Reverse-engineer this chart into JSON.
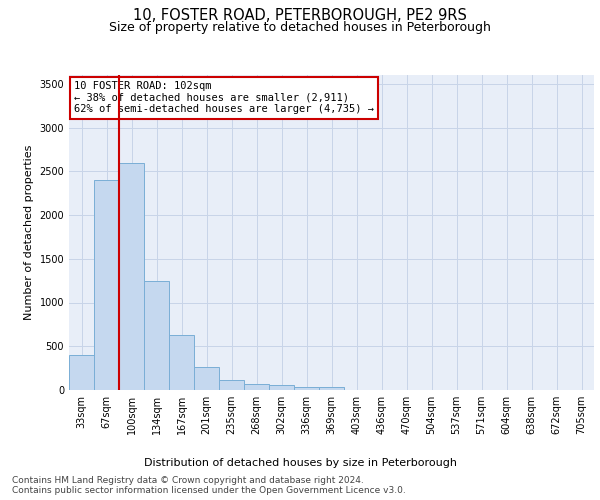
{
  "title": "10, FOSTER ROAD, PETERBOROUGH, PE2 9RS",
  "subtitle": "Size of property relative to detached houses in Peterborough",
  "xlabel": "Distribution of detached houses by size in Peterborough",
  "ylabel": "Number of detached properties",
  "categories": [
    "33sqm",
    "67sqm",
    "100sqm",
    "134sqm",
    "167sqm",
    "201sqm",
    "235sqm",
    "268sqm",
    "302sqm",
    "336sqm",
    "369sqm",
    "403sqm",
    "436sqm",
    "470sqm",
    "504sqm",
    "537sqm",
    "571sqm",
    "604sqm",
    "638sqm",
    "672sqm",
    "705sqm"
  ],
  "values": [
    400,
    2400,
    2600,
    1250,
    630,
    260,
    110,
    70,
    60,
    40,
    30,
    0,
    0,
    0,
    0,
    0,
    0,
    0,
    0,
    0,
    0
  ],
  "bar_color": "#c5d8ef",
  "bar_edge_color": "#7aaed6",
  "vline_color": "#cc0000",
  "annotation_box_text": "10 FOSTER ROAD: 102sqm\n← 38% of detached houses are smaller (2,911)\n62% of semi-detached houses are larger (4,735) →",
  "annotation_box_color": "#cc0000",
  "annotation_box_bg": "white",
  "ylim": [
    0,
    3600
  ],
  "yticks": [
    0,
    500,
    1000,
    1500,
    2000,
    2500,
    3000,
    3500
  ],
  "grid_color": "#c8d4e8",
  "bg_color": "#e8eef8",
  "footer_line1": "Contains HM Land Registry data © Crown copyright and database right 2024.",
  "footer_line2": "Contains public sector information licensed under the Open Government Licence v3.0.",
  "title_fontsize": 10.5,
  "subtitle_fontsize": 9,
  "ylabel_fontsize": 8,
  "tick_fontsize": 7,
  "annot_fontsize": 7.5,
  "footer_fontsize": 6.5
}
